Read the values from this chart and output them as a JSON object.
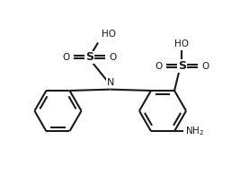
{
  "bg_color": "#ffffff",
  "line_color": "#1a1a1a",
  "text_color": "#1a1a1a",
  "figsize": [
    2.77,
    1.95
  ],
  "dpi": 100,
  "xlim": [
    0,
    10
  ],
  "ylim": [
    0,
    7
  ]
}
